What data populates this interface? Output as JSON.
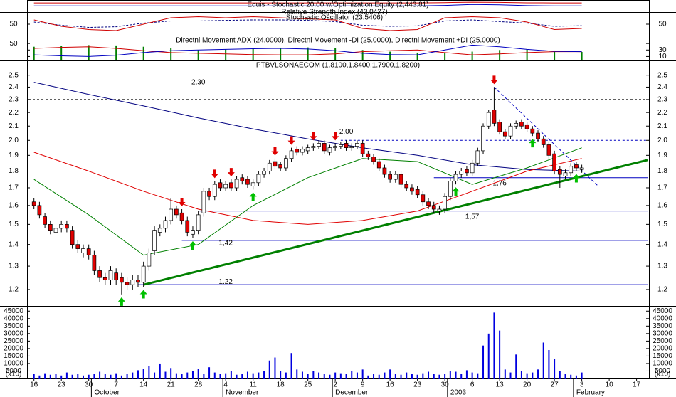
{
  "x_axis": {
    "xlim": [
      -1,
      112
    ],
    "xticks": [
      {
        "value": 0,
        "label": "16"
      },
      {
        "value": 5,
        "label": "23"
      },
      {
        "value": 10,
        "label": "30"
      },
      {
        "value": 15,
        "label": "7"
      },
      {
        "value": 20,
        "label": "14"
      },
      {
        "value": 25,
        "label": "21"
      },
      {
        "value": 30,
        "label": "28"
      },
      {
        "value": 35,
        "label": "4"
      },
      {
        "value": 40,
        "label": "11"
      },
      {
        "value": 45,
        "label": "18"
      },
      {
        "value": 50,
        "label": "25"
      },
      {
        "value": 55,
        "label": "2"
      },
      {
        "value": 60,
        "label": "9"
      },
      {
        "value": 65,
        "label": "16"
      },
      {
        "value": 70,
        "label": "23"
      },
      {
        "value": 75,
        "label": "30"
      },
      {
        "value": 80,
        "label": "6"
      },
      {
        "value": 85,
        "label": "13"
      },
      {
        "value": 90,
        "label": "20"
      },
      {
        "value": 95,
        "label": "27"
      },
      {
        "value": 100,
        "label": "3"
      },
      {
        "value": 105,
        "label": "10"
      },
      {
        "value": 110,
        "label": "17"
      }
    ],
    "months": [
      {
        "value": 11,
        "label": "October"
      },
      {
        "value": 35,
        "label": "November"
      },
      {
        "value": 55,
        "label": "December"
      },
      {
        "value": 76,
        "label": "2003"
      },
      {
        "value": 99,
        "label": "February"
      }
    ]
  },
  "chart_data": [
    {
      "type": "line",
      "title": "Equis - Stochastic 20.00 w/Optimization Equity (2,443.81)",
      "ylim": [
        0,
        100
      ],
      "x": [
        0,
        5,
        10,
        15,
        20,
        25,
        30,
        35,
        40,
        45,
        50,
        55,
        60,
        65,
        70,
        75,
        80,
        85,
        90,
        95,
        100
      ],
      "series": [
        {
          "color": "#d00000",
          "values": [
            85,
            85,
            85,
            85,
            85,
            85,
            85,
            85,
            85,
            85,
            85,
            85,
            85,
            85,
            85,
            88,
            92,
            90,
            86,
            85,
            85
          ]
        },
        {
          "color": "#0000c0",
          "values": [
            55,
            55,
            55,
            55,
            55,
            55,
            55,
            55,
            55,
            55,
            55,
            55,
            55,
            55,
            55,
            60,
            70,
            66,
            58,
            55,
            55
          ]
        },
        {
          "color": "#d00000",
          "values": [
            25,
            25,
            25,
            25,
            25,
            25,
            25,
            25,
            25,
            25,
            25,
            25,
            25,
            25,
            25,
            25,
            25,
            25,
            25,
            25,
            25
          ]
        }
      ]
    },
    {
      "type": "line",
      "ylim": [
        0,
        100
      ],
      "yticks": [
        50
      ],
      "x": [
        0,
        5,
        10,
        15,
        20,
        25,
        30,
        35,
        40,
        45,
        50,
        55,
        60,
        65,
        70,
        75,
        80,
        85,
        90,
        95,
        100
      ],
      "series": [
        {
          "name": "Relative Strength Index (43.0427)",
          "color": "#000080",
          "dashed": true,
          "values": [
            60,
            45,
            35,
            38,
            55,
            65,
            65,
            68,
            70,
            70,
            68,
            62,
            45,
            40,
            42,
            65,
            70,
            62,
            55,
            40,
            43
          ]
        },
        {
          "name": "Stochastic Oscillator (23.5406)",
          "color": "#d00000",
          "values": [
            70,
            40,
            25,
            20,
            50,
            80,
            85,
            80,
            85,
            80,
            75,
            70,
            30,
            20,
            25,
            80,
            85,
            80,
            60,
            25,
            30
          ]
        }
      ]
    },
    {
      "type": "line",
      "title": "Directnl Movement ADX (24.0000), Directnl Movement -DI (25.0000), Directnl Movement +DI (25.0000)",
      "ylim": [
        0,
        70
      ],
      "yticks": [
        50
      ],
      "y2ticks": [
        30,
        10
      ],
      "x": [
        0,
        5,
        10,
        15,
        20,
        25,
        30,
        35,
        40,
        45,
        50,
        55,
        60,
        65,
        70,
        75,
        80,
        85,
        90,
        95,
        100
      ],
      "series": [
        {
          "color": "#008000",
          "style": "bar",
          "values": [
            40,
            42,
            45,
            44,
            40,
            35,
            30,
            32,
            34,
            36,
            38,
            37,
            30,
            25,
            22,
            20,
            25,
            30,
            32,
            28,
            24
          ]
        },
        {
          "color": "#d00000",
          "values": [
            35,
            38,
            40,
            35,
            28,
            22,
            20,
            18,
            16,
            15,
            15,
            18,
            25,
            28,
            30,
            22,
            15,
            18,
            22,
            25,
            25
          ]
        },
        {
          "color": "#0000c0",
          "values": [
            15,
            12,
            10,
            14,
            22,
            28,
            30,
            32,
            34,
            35,
            33,
            28,
            20,
            16,
            15,
            30,
            45,
            40,
            32,
            26,
            25
          ]
        }
      ]
    },
    {
      "type": "candlestick",
      "title": "PTBVLSONAECOM (1.8100,1.8400,1.7900,1.8200)",
      "log_scale": true,
      "ylim": [
        1.14,
        2.61
      ],
      "yticks": [
        1.2,
        1.3,
        1.4,
        1.5,
        1.6,
        1.7,
        1.8,
        1.9,
        {
          "value": 2,
          "label": "2.0"
        },
        2.1,
        2.2,
        2.3,
        2.4,
        2.5
      ],
      "up_color": "#ffffff",
      "down_color": "#e00000",
      "x": [
        0,
        1,
        2,
        3,
        4,
        5,
        6,
        7,
        8,
        9,
        10,
        11,
        12,
        13,
        14,
        15,
        16,
        17,
        18,
        19,
        20,
        21,
        22,
        23,
        24,
        25,
        26,
        27,
        28,
        29,
        30,
        31,
        32,
        33,
        34,
        35,
        36,
        37,
        38,
        39,
        40,
        41,
        42,
        43,
        44,
        45,
        46,
        47,
        48,
        49,
        50,
        51,
        52,
        53,
        54,
        55,
        56,
        57,
        58,
        59,
        60,
        61,
        62,
        63,
        64,
        65,
        66,
        67,
        68,
        69,
        70,
        71,
        72,
        73,
        74,
        75,
        76,
        77,
        78,
        79,
        80,
        81,
        82,
        83,
        84,
        85,
        86,
        87,
        88,
        89,
        90,
        91,
        92,
        93,
        94,
        95,
        96,
        97,
        98,
        99,
        100
      ],
      "open": [
        1.62,
        1.6,
        1.54,
        1.5,
        1.46,
        1.48,
        1.5,
        1.47,
        1.4,
        1.36,
        1.38,
        1.35,
        1.28,
        1.25,
        1.24,
        1.27,
        1.25,
        1.23,
        1.22,
        1.24,
        1.23,
        1.3,
        1.37,
        1.46,
        1.48,
        1.52,
        1.58,
        1.56,
        1.52,
        1.45,
        1.47,
        1.56,
        1.68,
        1.65,
        1.73,
        1.7,
        1.73,
        1.7,
        1.76,
        1.75,
        1.71,
        1.73,
        1.78,
        1.8,
        1.86,
        1.84,
        1.82,
        1.88,
        1.94,
        1.92,
        1.93,
        1.95,
        1.96,
        1.98,
        1.92,
        1.95,
        1.96,
        1.98,
        1.95,
        1.96,
        1.98,
        1.91,
        1.89,
        1.86,
        1.82,
        1.78,
        1.75,
        1.78,
        1.72,
        1.7,
        1.69,
        1.66,
        1.62,
        1.6,
        1.57,
        1.58,
        1.65,
        1.74,
        1.78,
        1.81,
        1.79,
        1.85,
        1.93,
        2.1,
        2.22,
        2.13,
        2.06,
        2.03,
        2.1,
        2.13,
        2.11,
        2.08,
        2.05,
        2.01,
        1.97,
        1.91,
        1.81,
        1.77,
        1.79,
        1.84,
        1.81
      ],
      "high": [
        1.64,
        1.62,
        1.56,
        1.52,
        1.5,
        1.52,
        1.52,
        1.49,
        1.42,
        1.4,
        1.4,
        1.37,
        1.3,
        1.27,
        1.3,
        1.29,
        1.27,
        1.25,
        1.26,
        1.26,
        1.32,
        1.38,
        1.49,
        1.5,
        1.54,
        1.64,
        1.6,
        1.58,
        1.54,
        1.49,
        1.57,
        1.7,
        1.7,
        1.74,
        1.75,
        1.74,
        1.75,
        1.77,
        1.78,
        1.77,
        1.75,
        1.8,
        1.82,
        1.87,
        1.88,
        1.86,
        1.9,
        1.95,
        1.96,
        1.96,
        1.97,
        1.98,
        2.0,
        2.0,
        1.97,
        1.98,
        1.99,
        2.0,
        1.98,
        2.0,
        2.0,
        1.93,
        1.91,
        1.88,
        1.84,
        1.8,
        1.8,
        1.8,
        1.74,
        1.72,
        1.71,
        1.68,
        1.64,
        1.62,
        1.6,
        1.67,
        1.76,
        1.8,
        1.82,
        1.83,
        1.87,
        1.95,
        2.12,
        2.22,
        2.4,
        2.15,
        2.08,
        2.12,
        2.14,
        2.15,
        2.13,
        2.1,
        2.07,
        2.03,
        1.99,
        1.93,
        1.83,
        1.81,
        1.85,
        1.86,
        1.84
      ],
      "low": [
        1.58,
        1.53,
        1.48,
        1.45,
        1.44,
        1.46,
        1.46,
        1.38,
        1.36,
        1.34,
        1.33,
        1.26,
        1.23,
        1.22,
        1.22,
        1.22,
        1.18,
        1.2,
        1.2,
        1.21,
        1.21,
        1.28,
        1.35,
        1.44,
        1.46,
        1.5,
        1.53,
        1.5,
        1.44,
        1.43,
        1.45,
        1.54,
        1.63,
        1.63,
        1.68,
        1.68,
        1.68,
        1.68,
        1.72,
        1.7,
        1.69,
        1.71,
        1.76,
        1.78,
        1.81,
        1.8,
        1.8,
        1.86,
        1.9,
        1.9,
        1.91,
        1.93,
        1.94,
        1.91,
        1.9,
        1.93,
        1.94,
        1.93,
        1.93,
        1.94,
        1.89,
        1.87,
        1.84,
        1.8,
        1.76,
        1.73,
        1.73,
        1.7,
        1.68,
        1.66,
        1.64,
        1.6,
        1.58,
        1.56,
        1.55,
        1.56,
        1.63,
        1.72,
        1.76,
        1.77,
        1.77,
        1.83,
        1.91,
        2.08,
        2.1,
        2.04,
        2.01,
        2.01,
        2.08,
        2.08,
        2.06,
        2.03,
        1.99,
        1.95,
        1.88,
        1.78,
        1.7,
        1.75,
        1.77,
        1.8,
        1.79
      ],
      "close": [
        1.6,
        1.55,
        1.5,
        1.47,
        1.48,
        1.5,
        1.48,
        1.4,
        1.38,
        1.38,
        1.35,
        1.28,
        1.25,
        1.24,
        1.28,
        1.24,
        1.23,
        1.22,
        1.24,
        1.23,
        1.3,
        1.36,
        1.47,
        1.48,
        1.52,
        1.58,
        1.55,
        1.52,
        1.46,
        1.47,
        1.55,
        1.68,
        1.65,
        1.72,
        1.7,
        1.72,
        1.7,
        1.75,
        1.74,
        1.72,
        1.73,
        1.78,
        1.8,
        1.85,
        1.83,
        1.82,
        1.88,
        1.93,
        1.92,
        1.94,
        1.95,
        1.96,
        1.98,
        1.93,
        1.95,
        1.96,
        1.97,
        1.95,
        1.96,
        1.98,
        1.91,
        1.89,
        1.86,
        1.82,
        1.78,
        1.75,
        1.78,
        1.72,
        1.7,
        1.68,
        1.66,
        1.62,
        1.6,
        1.58,
        1.58,
        1.65,
        1.74,
        1.78,
        1.8,
        1.79,
        1.85,
        1.93,
        2.1,
        2.2,
        2.12,
        2.06,
        2.03,
        2.1,
        2.12,
        2.1,
        2.08,
        2.05,
        2.01,
        1.97,
        1.9,
        1.8,
        1.78,
        1.79,
        1.83,
        1.82,
        1.82
      ],
      "lines": [
        {
          "color": "#000080",
          "x": [
            0,
            10,
            20,
            30,
            40,
            50,
            60,
            70,
            80,
            90,
            100
          ],
          "values": [
            2.44,
            2.34,
            2.25,
            2.16,
            2.08,
            2.01,
            1.95,
            1.9,
            1.84,
            1.81,
            1.8
          ]
        },
        {
          "color": "#e00000",
          "x": [
            0,
            10,
            20,
            30,
            40,
            50,
            60,
            70,
            80,
            90,
            100
          ],
          "values": [
            1.92,
            1.8,
            1.68,
            1.58,
            1.52,
            1.5,
            1.52,
            1.57,
            1.68,
            1.8,
            1.88
          ]
        },
        {
          "color": "#008000",
          "x": [
            0,
            10,
            20,
            30,
            40,
            50,
            60,
            70,
            80,
            90,
            100
          ],
          "values": [
            1.75,
            1.55,
            1.35,
            1.4,
            1.6,
            1.76,
            1.88,
            1.86,
            1.72,
            1.82,
            1.95
          ]
        }
      ],
      "trendline": {
        "color": "#008000",
        "x": [
          20,
          112
        ],
        "values": [
          1.22,
          1.87
        ]
      },
      "downtrend": {
        "color": "#0000c0",
        "x": [
          84,
          103
        ],
        "values": [
          2.4,
          1.71
        ]
      },
      "levels": [
        {
          "value": 2.3,
          "label": "2,30",
          "x": [
            -1,
            112
          ],
          "dashed": true,
          "color": "#000000"
        },
        {
          "value": 2.0,
          "label": "2.00",
          "x": [
            56,
            112
          ],
          "dashed": true,
          "color": "#0000c0"
        },
        {
          "value": 1.76,
          "label": "1,76",
          "x": [
            73,
            112
          ],
          "color": "#0000c0"
        },
        {
          "value": 1.57,
          "label": "1,57",
          "x": [
            30,
            112
          ],
          "color": "#0000c0"
        },
        {
          "value": 1.42,
          "label": "1,42",
          "x": [
            27,
            112
          ],
          "color": "#0000c0"
        },
        {
          "value": 1.22,
          "label": "1.22",
          "x": [
            19,
            112
          ],
          "color": "#0000c0"
        }
      ],
      "buy_signals": [
        16,
        20,
        29,
        40,
        77,
        91,
        99
      ],
      "sell_signals": [
        27,
        33,
        36,
        44,
        47,
        51,
        55,
        84
      ],
      "buy_color": "#00c000",
      "sell_color": "#e00000",
      "volume": [
        3000,
        2000,
        3500,
        2500,
        3000,
        2000,
        4000,
        2500,
        3000,
        2000,
        2500,
        3000,
        4500,
        3000,
        2500,
        3500,
        2000,
        3000,
        4000,
        5500,
        6500,
        8500,
        4000,
        10000,
        4500,
        7000,
        3500,
        3000,
        4000,
        5000,
        6500,
        3000,
        7500,
        4000,
        3000,
        3500,
        5000,
        2500,
        3000,
        4500,
        3500,
        4000,
        5000,
        12000,
        14000,
        5000,
        4000,
        17000,
        6000,
        4500,
        3000,
        5000,
        4000,
        3000,
        2500,
        4000,
        3500,
        3000,
        5000,
        4000,
        6000,
        2000,
        3000,
        2500,
        4000,
        6000,
        3000,
        2500,
        4000,
        3000,
        2500,
        3500,
        4500,
        3000,
        2500,
        3000,
        5000,
        4500,
        3000,
        5500,
        4000,
        3500,
        22000,
        30000,
        44000,
        32000,
        6000,
        4000,
        16000,
        5000,
        3500,
        4000,
        6000,
        24000,
        19000,
        13000,
        5000,
        3000,
        2500,
        2000,
        4000
      ],
      "volume_color": "#0000e0",
      "volume_ylim": [
        0,
        47500
      ],
      "volume_yticks": [
        5000,
        10000,
        15000,
        20000,
        25000,
        30000,
        35000,
        40000,
        45000
      ],
      "volume_unit_label": "(x10)"
    }
  ]
}
